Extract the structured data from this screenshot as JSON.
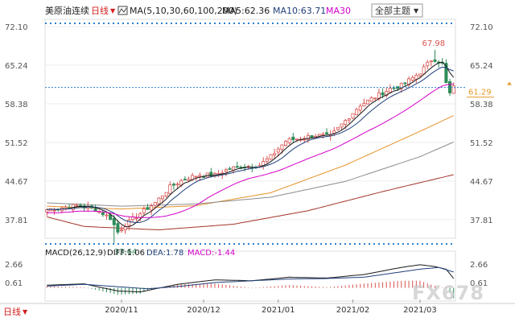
{
  "header": {
    "instrument": "美原油连续",
    "period": "日线",
    "period_arrow": "▼",
    "ma_label": "MA(5,10,30,60,100,200)",
    "ma5_label": "MA5:62.36",
    "ma10_label": "MA10:63.71",
    "ma30_label": "MA30",
    "theme_button": "全部主题",
    "theme_arrow": "▼"
  },
  "macd_header": {
    "label": "MACD(26,12,9)",
    "diff": "DIFF:1.06",
    "dea": "DEA:1.78",
    "macd": "MACD:-1.44"
  },
  "footer": {
    "period": "日线",
    "period_arrow": "▼"
  },
  "watermark": "FX678",
  "colors": {
    "up": "#d9534f",
    "down": "#2e8b57",
    "ma5": "#1a1a1a",
    "ma10": "#1f3f7a",
    "ma30": "#d400c8",
    "ma60": "#e6932b",
    "ma100": "#8c8c8c",
    "ma200": "#a33228",
    "current": "#e39b2a",
    "blue_dots": "#2b7fd1",
    "grid": "#eeeeee",
    "axis": "#555555"
  },
  "chart_data": {
    "type": "candlestick",
    "y_axis_ticks": [
      "72.10",
      "65.24",
      "58.38",
      "51.52",
      "44.67",
      "37.81"
    ],
    "y_ticks_values": [
      72.1,
      65.24,
      58.38,
      51.52,
      44.67,
      37.81
    ],
    "ylim": [
      34.5,
      73.4
    ],
    "x_axis_labels": [
      "2020/11",
      "2020/12",
      "2021/01",
      "2021/02",
      "2021/03"
    ],
    "x_label_index": [
      20,
      42,
      62,
      82,
      100
    ],
    "candle_count": 110,
    "price_path": [
      [
        0,
        39.6
      ],
      [
        8,
        40.3
      ],
      [
        13,
        39.7
      ],
      [
        17,
        38.1
      ],
      [
        19,
        35.6
      ],
      [
        21,
        36.9
      ],
      [
        25,
        38.9
      ],
      [
        29,
        40.8
      ],
      [
        33,
        43.6
      ],
      [
        37,
        45.1
      ],
      [
        41,
        45.8
      ],
      [
        45,
        45.7
      ],
      [
        49,
        46.9
      ],
      [
        53,
        47.3
      ],
      [
        57,
        47.5
      ],
      [
        60,
        49.0
      ],
      [
        64,
        51.8
      ],
      [
        68,
        52.3
      ],
      [
        72,
        52.8
      ],
      [
        76,
        52.6
      ],
      [
        80,
        55.4
      ],
      [
        84,
        58.2
      ],
      [
        88,
        59.6
      ],
      [
        92,
        61.1
      ],
      [
        95,
        61.6
      ],
      [
        98,
        63.0
      ],
      [
        100,
        64.0
      ],
      [
        103,
        66.2
      ],
      [
        104,
        66.3
      ],
      [
        106,
        65.5
      ],
      [
        107,
        62.0
      ],
      [
        108,
        60.2
      ],
      [
        109,
        61.29
      ]
    ],
    "high_label": "67.98",
    "high_value": 67.98,
    "high_index": 104,
    "low_label": "33.64",
    "low_value": 33.64,
    "low_index": 18,
    "current_label": "61.29",
    "current_value": 61.29,
    "moving_averages": [
      {
        "name": "MA5",
        "color_key": "ma5",
        "offset": 0.0,
        "lag": 2
      },
      {
        "name": "MA10",
        "color_key": "ma10",
        "offset": 0.0,
        "lag": 4
      },
      {
        "name": "MA30",
        "color_key": "ma30",
        "offset": 0.0,
        "lag": 11
      }
    ],
    "long_mas": [
      {
        "name": "MA60",
        "color_key": "ma60",
        "points": [
          [
            0,
            40.2
          ],
          [
            20,
            39.7
          ],
          [
            40,
            40.3
          ],
          [
            60,
            42.6
          ],
          [
            80,
            47.5
          ],
          [
            100,
            53.5
          ],
          [
            109,
            56.3
          ]
        ]
      },
      {
        "name": "MA100",
        "color_key": "ma100",
        "points": [
          [
            0,
            40.8
          ],
          [
            20,
            40.2
          ],
          [
            40,
            40.6
          ],
          [
            60,
            41.8
          ],
          [
            80,
            44.6
          ],
          [
            100,
            49.0
          ],
          [
            109,
            51.6
          ]
        ]
      },
      {
        "name": "MA200",
        "color_key": "ma200",
        "points": [
          [
            0,
            38.3
          ],
          [
            10,
            36.6
          ],
          [
            30,
            36.0
          ],
          [
            50,
            37.0
          ],
          [
            70,
            39.4
          ],
          [
            90,
            42.8
          ],
          [
            109,
            45.8
          ]
        ]
      }
    ],
    "macd_ticks": [
      "2.66",
      "0.61"
    ],
    "macd_tick_values": [
      2.66,
      0.61
    ],
    "macd_ylim": [
      -1.3,
      3.4
    ],
    "diff_points": [
      [
        0,
        0.3
      ],
      [
        10,
        0.45
      ],
      [
        19,
        -0.35
      ],
      [
        25,
        -0.45
      ],
      [
        35,
        0.4
      ],
      [
        45,
        0.9
      ],
      [
        55,
        0.8
      ],
      [
        65,
        1.2
      ],
      [
        75,
        1.1
      ],
      [
        85,
        1.5
      ],
      [
        95,
        2.3
      ],
      [
        100,
        2.6
      ],
      [
        104,
        2.4
      ],
      [
        107,
        2.1
      ],
      [
        109,
        1.06
      ]
    ],
    "dea_points": [
      [
        0,
        0.2
      ],
      [
        10,
        0.4
      ],
      [
        20,
        0.1
      ],
      [
        27,
        -0.1
      ],
      [
        35,
        0.15
      ],
      [
        45,
        0.6
      ],
      [
        55,
        0.8
      ],
      [
        65,
        1.0
      ],
      [
        75,
        1.05
      ],
      [
        85,
        1.2
      ],
      [
        95,
        1.8
      ],
      [
        100,
        2.1
      ],
      [
        105,
        2.3
      ],
      [
        109,
        1.78
      ]
    ]
  }
}
